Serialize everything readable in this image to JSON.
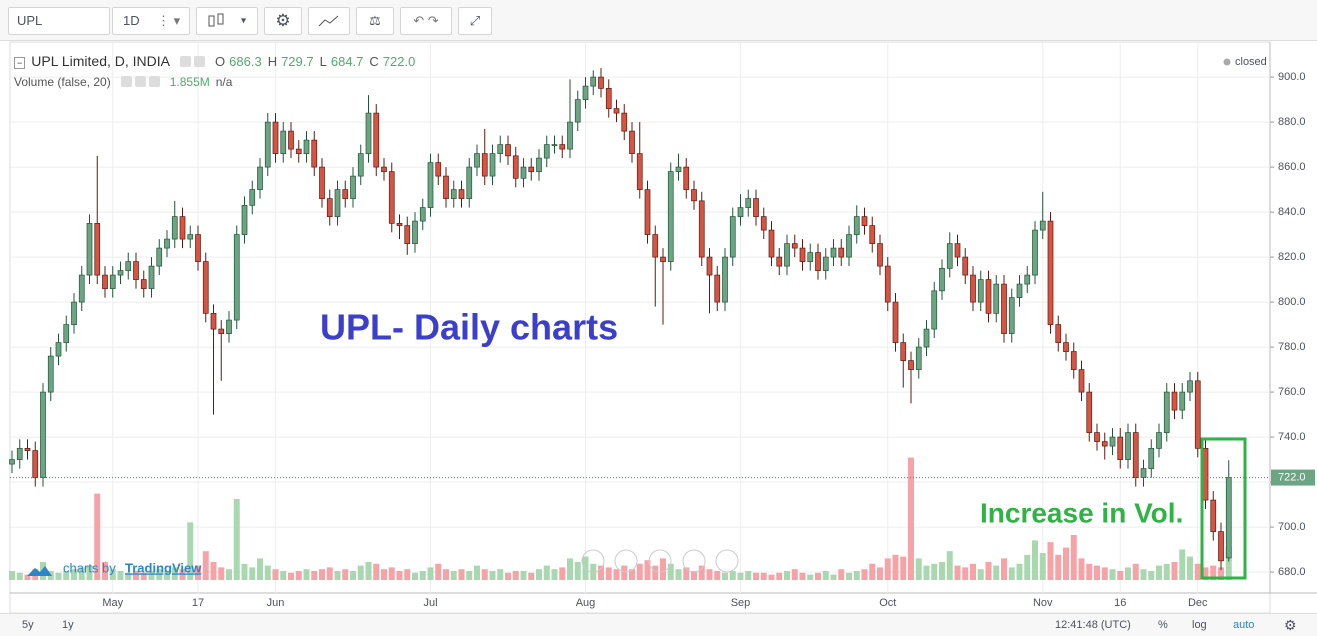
{
  "toolbar": {
    "symbol": "UPL",
    "interval": "1D"
  },
  "chart_data": {
    "type": "candlestick",
    "title": "UPL Limited, D, INDIA",
    "ohlc_legend": [
      {
        "label": "O",
        "value": "686.3"
      },
      {
        "label": "H",
        "value": "729.7"
      },
      {
        "label": "L",
        "value": "684.7"
      },
      {
        "label": "C",
        "value": "722.0"
      }
    ],
    "status": "closed",
    "volume_study": {
      "name": "Volume (false, 20)",
      "value_label": "1.855M",
      "extra": "n/a"
    },
    "annotations": [
      "UPL- Daily charts",
      "Increase in Vol."
    ],
    "branding": {
      "prefix": "charts by",
      "name": "TradingView"
    },
    "last_price_label": "722.0",
    "bottom_bar": {
      "ranges": [
        "5y",
        "1y"
      ],
      "time": "12:41:48 (UTC)",
      "scale_buttons": [
        "%",
        "log",
        "auto"
      ]
    },
    "up_color": "#6ba583",
    "down_color": "#d75442",
    "volume_up_color": "#a9d8b0",
    "volume_down_color": "#f5a3a6",
    "grid": true,
    "ylim": [
      670.7,
      915.6
    ],
    "yticks": [
      {
        "value": 680,
        "label": "680.0"
      },
      {
        "value": 700,
        "label": "700.0"
      },
      {
        "value": 720,
        "label": "720.0"
      },
      {
        "value": 740,
        "label": "740.0"
      },
      {
        "value": 760,
        "label": "760.0"
      },
      {
        "value": 780,
        "label": "780.0"
      },
      {
        "value": 800,
        "label": "800.0"
      },
      {
        "value": 820,
        "label": "820.0"
      },
      {
        "value": 840,
        "label": "840.0"
      },
      {
        "value": 860,
        "label": "860.0"
      },
      {
        "value": 880,
        "label": "880.0"
      },
      {
        "value": 900,
        "label": "900.0"
      }
    ],
    "categories": [
      null,
      null,
      null,
      null,
      null,
      null,
      null,
      null,
      null,
      null,
      null,
      null,
      null,
      "May",
      null,
      null,
      null,
      null,
      null,
      null,
      null,
      null,
      null,
      null,
      "17",
      null,
      null,
      null,
      null,
      null,
      null,
      null,
      null,
      null,
      "Jun",
      null,
      null,
      null,
      null,
      null,
      null,
      null,
      null,
      null,
      null,
      null,
      null,
      null,
      null,
      null,
      null,
      null,
      null,
      null,
      "Jul",
      null,
      null,
      null,
      null,
      null,
      null,
      null,
      null,
      null,
      null,
      null,
      null,
      null,
      null,
      null,
      null,
      null,
      null,
      null,
      "Aug",
      null,
      null,
      null,
      null,
      null,
      null,
      null,
      null,
      null,
      null,
      null,
      null,
      null,
      null,
      null,
      null,
      null,
      null,
      null,
      "Sep",
      null,
      null,
      null,
      null,
      null,
      null,
      null,
      null,
      null,
      null,
      null,
      null,
      null,
      null,
      null,
      null,
      null,
      null,
      "Oct",
      null,
      null,
      null,
      null,
      null,
      null,
      null,
      null,
      null,
      null,
      null,
      null,
      null,
      null,
      null,
      null,
      null,
      null,
      null,
      "Nov",
      null,
      null,
      null,
      null,
      null,
      null,
      null,
      null,
      null,
      "16",
      null,
      null,
      null,
      null,
      null,
      null,
      null,
      null,
      null,
      "Dec",
      null,
      null,
      null,
      null
    ],
    "open": [
      728,
      730,
      735,
      734,
      722,
      760,
      776,
      782,
      790,
      800,
      812,
      835,
      812,
      806,
      812,
      814,
      818,
      810,
      806,
      816,
      824,
      828,
      838,
      828,
      830,
      818,
      795,
      788,
      786,
      792,
      830,
      843,
      850,
      860,
      880,
      866,
      876,
      868,
      866,
      872,
      860,
      846,
      838,
      850,
      846,
      856,
      866,
      884,
      860,
      858,
      835,
      834,
      826,
      836,
      842,
      862,
      856,
      846,
      850,
      846,
      860,
      866,
      856,
      866,
      870,
      865,
      855,
      860,
      858,
      864,
      870,
      870,
      868,
      880,
      890,
      896,
      900,
      895,
      886,
      884,
      876,
      866,
      850,
      830,
      820,
      818,
      858,
      860,
      850,
      845,
      820,
      812,
      800,
      820,
      838,
      842,
      846,
      838,
      832,
      820,
      816,
      826,
      824,
      818,
      822,
      814,
      820,
      824,
      820,
      830,
      838,
      834,
      826,
      816,
      800,
      782,
      774,
      770,
      780,
      788,
      805,
      815,
      826,
      820,
      812,
      800,
      810,
      795,
      808,
      786,
      802,
      808,
      812,
      832,
      836,
      790,
      782,
      778,
      770,
      760,
      742,
      738,
      736,
      740,
      730,
      742,
      722,
      726,
      735,
      742,
      760,
      752,
      760,
      765,
      735,
      712,
      698,
      686.3
    ],
    "high": [
      734,
      739,
      739,
      738,
      764,
      780,
      786,
      794,
      804,
      816,
      839,
      865,
      816,
      816,
      818,
      822,
      822,
      814,
      820,
      828,
      832,
      845,
      842,
      834,
      834,
      822,
      799,
      792,
      796,
      834,
      847,
      854,
      864,
      884,
      884,
      880,
      880,
      872,
      876,
      876,
      864,
      850,
      854,
      854,
      860,
      870,
      892,
      888,
      864,
      862,
      839,
      838,
      840,
      846,
      866,
      866,
      860,
      854,
      854,
      864,
      870,
      877,
      870,
      874,
      874,
      869,
      864,
      864,
      868,
      874,
      874,
      874,
      899,
      894,
      900,
      903,
      904,
      899,
      890,
      888,
      880,
      880,
      854,
      834,
      824,
      862,
      866,
      864,
      854,
      849,
      824,
      816,
      824,
      842,
      848,
      850,
      850,
      842,
      836,
      824,
      830,
      830,
      828,
      826,
      826,
      824,
      828,
      828,
      834,
      843,
      842,
      838,
      830,
      820,
      804,
      786,
      778,
      784,
      792,
      809,
      819,
      831,
      830,
      824,
      816,
      814,
      814,
      812,
      812,
      806,
      812,
      816,
      836,
      849,
      840,
      794,
      786,
      782,
      774,
      764,
      746,
      742,
      744,
      744,
      746,
      746,
      730,
      739,
      746,
      764,
      764,
      764,
      769,
      769,
      739,
      716,
      702,
      729.7
    ],
    "low": [
      724,
      726,
      730,
      718,
      718,
      756,
      772,
      778,
      786,
      796,
      808,
      808,
      802,
      802,
      808,
      810,
      806,
      802,
      802,
      812,
      820,
      824,
      824,
      824,
      814,
      791,
      750,
      765,
      782,
      788,
      826,
      839,
      846,
      856,
      862,
      862,
      864,
      862,
      862,
      856,
      842,
      834,
      834,
      842,
      842,
      852,
      862,
      856,
      854,
      831,
      828,
      821,
      822,
      832,
      838,
      852,
      842,
      842,
      842,
      842,
      856,
      852,
      852,
      862,
      861,
      851,
      851,
      854,
      854,
      860,
      866,
      864,
      864,
      876,
      886,
      892,
      891,
      882,
      880,
      872,
      862,
      846,
      826,
      798,
      790,
      814,
      854,
      846,
      841,
      816,
      795,
      796,
      796,
      816,
      834,
      838,
      834,
      828,
      816,
      812,
      812,
      820,
      814,
      814,
      810,
      810,
      816,
      816,
      816,
      826,
      830,
      822,
      812,
      796,
      778,
      762,
      755,
      766,
      776,
      784,
      801,
      811,
      816,
      808,
      796,
      796,
      791,
      791,
      782,
      782,
      798,
      804,
      808,
      828,
      786,
      778,
      774,
      766,
      756,
      738,
      734,
      730,
      732,
      726,
      726,
      718,
      718,
      722,
      731,
      738,
      748,
      748,
      756,
      731,
      708,
      694,
      681,
      684.7
    ],
    "close": [
      730,
      735,
      734,
      722,
      760,
      776,
      782,
      790,
      800,
      812,
      835,
      812,
      806,
      812,
      814,
      818,
      810,
      806,
      816,
      824,
      828,
      838,
      828,
      830,
      818,
      795,
      788,
      786,
      792,
      830,
      843,
      850,
      860,
      880,
      866,
      876,
      868,
      866,
      872,
      860,
      846,
      838,
      850,
      846,
      856,
      866,
      884,
      860,
      858,
      835,
      834,
      826,
      836,
      842,
      862,
      856,
      846,
      850,
      846,
      860,
      866,
      856,
      866,
      870,
      865,
      855,
      860,
      858,
      864,
      870,
      870,
      868,
      880,
      890,
      896,
      900,
      895,
      886,
      884,
      876,
      866,
      850,
      830,
      820,
      818,
      858,
      860,
      850,
      845,
      820,
      812,
      800,
      820,
      838,
      842,
      846,
      838,
      832,
      820,
      816,
      826,
      824,
      818,
      822,
      814,
      820,
      824,
      820,
      830,
      838,
      834,
      826,
      816,
      800,
      782,
      774,
      770,
      780,
      788,
      805,
      815,
      826,
      820,
      812,
      800,
      810,
      795,
      808,
      786,
      802,
      808,
      812,
      832,
      836,
      790,
      782,
      778,
      770,
      760,
      742,
      738,
      736,
      740,
      730,
      742,
      722,
      726,
      735,
      742,
      760,
      752,
      760,
      765,
      735,
      712,
      698,
      685,
      722.0
    ],
    "volume": [
      0.5,
      0.4,
      0.3,
      0.6,
      1.0,
      0.5,
      0.4,
      0.5,
      0.6,
      0.7,
      0.8,
      4.8,
      1.0,
      0.6,
      0.5,
      0.4,
      0.5,
      0.4,
      0.5,
      0.6,
      0.5,
      0.7,
      0.6,
      3.2,
      0.8,
      1.6,
      1.0,
      0.7,
      0.6,
      4.5,
      0.9,
      0.7,
      1.2,
      0.8,
      0.6,
      0.5,
      0.4,
      0.5,
      0.6,
      0.5,
      0.6,
      0.7,
      0.5,
      0.6,
      0.5,
      0.8,
      1.0,
      0.9,
      0.6,
      0.7,
      0.5,
      0.6,
      0.4,
      0.5,
      0.7,
      0.9,
      0.6,
      0.5,
      0.6,
      0.5,
      0.8,
      0.6,
      0.5,
      0.6,
      0.4,
      0.5,
      0.5,
      0.4,
      0.6,
      0.8,
      0.6,
      0.7,
      1.2,
      1.0,
      1.3,
      0.9,
      0.8,
      0.7,
      0.6,
      0.8,
      0.6,
      0.9,
      1.1,
      0.8,
      1.2,
      0.9,
      0.6,
      0.7,
      0.5,
      0.8,
      0.6,
      0.5,
      0.4,
      0.5,
      0.4,
      0.5,
      0.4,
      0.4,
      0.3,
      0.4,
      0.5,
      0.6,
      0.4,
      0.3,
      0.4,
      0.5,
      0.3,
      0.6,
      0.4,
      0.5,
      0.6,
      0.9,
      0.7,
      1.2,
      1.4,
      1.3,
      6.8,
      1.2,
      0.8,
      0.9,
      1.0,
      1.6,
      0.8,
      0.7,
      0.9,
      0.6,
      1.0,
      0.8,
      1.2,
      0.7,
      0.9,
      1.4,
      2.2,
      1.5,
      2.1,
      1.4,
      1.8,
      2.5,
      1.2,
      0.9,
      0.8,
      0.7,
      0.6,
      0.5,
      0.7,
      0.9,
      0.6,
      0.5,
      0.8,
      0.9,
      1.0,
      1.7,
      1.3,
      0.9,
      0.7,
      0.8,
      0.7,
      1.855
    ]
  }
}
